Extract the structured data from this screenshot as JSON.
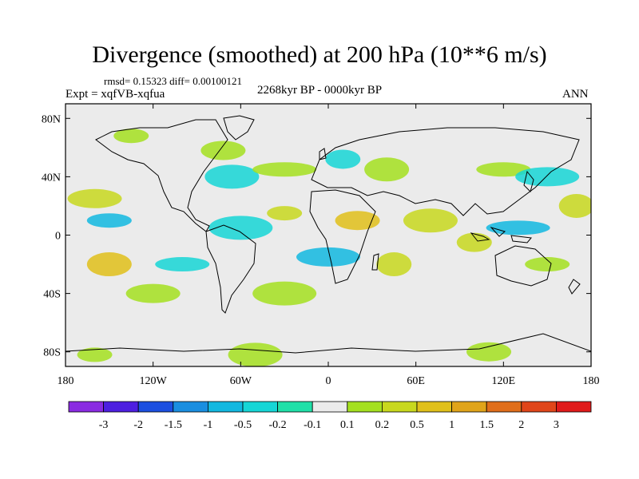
{
  "title": "Divergence (smoothed) at 200 hPa (10**6 m/s)",
  "stats": "rmsd= 0.15323 diff= 0.00100121",
  "experiment": "Expt = xqfVB-xqfua",
  "period": "2268kyr BP - 0000kyr BP",
  "season": "ANN",
  "axes": {
    "lat_ticks": [
      {
        "value": 80,
        "label": "80N"
      },
      {
        "value": 40,
        "label": "40N"
      },
      {
        "value": 0,
        "label": "0"
      },
      {
        "value": -40,
        "label": "40S"
      },
      {
        "value": -80,
        "label": "80S"
      }
    ],
    "lon_ticks": [
      {
        "value": -180,
        "label": "180"
      },
      {
        "value": -120,
        "label": "120W"
      },
      {
        "value": -60,
        "label": "60W"
      },
      {
        "value": 0,
        "label": "0"
      },
      {
        "value": 60,
        "label": "60E"
      },
      {
        "value": 120,
        "label": "120E"
      },
      {
        "value": 180,
        "label": "180"
      }
    ],
    "lat_range": [
      -90,
      90
    ],
    "lon_range": [
      -180,
      180
    ]
  },
  "colorbar": {
    "colors": [
      "#8a2be2",
      "#4d1fe0",
      "#1c4fe0",
      "#1a8ee0",
      "#12b8e0",
      "#16d6d6",
      "#20e0a8",
      "#ebebeb",
      "#a4e020",
      "#c8d81e",
      "#e0c01a",
      "#e0a41a",
      "#e06e1a",
      "#e0461a",
      "#e01a1a"
    ],
    "labels": [
      "-3",
      "-2",
      "-1.5",
      "-1",
      "-0.5",
      "-0.2",
      "-0.1",
      "0.1",
      "0.2",
      "0.5",
      "1",
      "1.5",
      "2",
      "3"
    ]
  },
  "anomalies": [
    {
      "lon": -135,
      "lat": 68,
      "level": "0.2",
      "color": "#a4e020"
    },
    {
      "lon": -72,
      "lat": 58,
      "level": "0.2",
      "color": "#a4e020"
    },
    {
      "lon": -66,
      "lat": 40,
      "level": "-0.2",
      "color": "#16d6d6"
    },
    {
      "lon": -30,
      "lat": 45,
      "level": "0.2",
      "color": "#a4e020"
    },
    {
      "lon": 10,
      "lat": 52,
      "level": "-0.2",
      "color": "#16d6d6"
    },
    {
      "lon": 40,
      "lat": 45,
      "level": "0.2",
      "color": "#a4e020"
    },
    {
      "lon": 120,
      "lat": 45,
      "level": "0.2",
      "color": "#a4e020"
    },
    {
      "lon": 150,
      "lat": 40,
      "level": "-0.2",
      "color": "#16d6d6"
    },
    {
      "lon": 170,
      "lat": 20,
      "level": "0.5",
      "color": "#c8d81e"
    },
    {
      "lon": -150,
      "lat": 10,
      "level": "-0.5",
      "color": "#12b8e0"
    },
    {
      "lon": -160,
      "lat": 25,
      "level": "0.5",
      "color": "#c8d81e"
    },
    {
      "lon": -60,
      "lat": 5,
      "level": "-0.2",
      "color": "#16d6d6"
    },
    {
      "lon": -30,
      "lat": 15,
      "level": "0.5",
      "color": "#c8d81e"
    },
    {
      "lon": 20,
      "lat": 10,
      "level": "1",
      "color": "#e0c01a"
    },
    {
      "lon": 70,
      "lat": 10,
      "level": "0.5",
      "color": "#c8d81e"
    },
    {
      "lon": 130,
      "lat": 5,
      "level": "-0.5",
      "color": "#12b8e0"
    },
    {
      "lon": 100,
      "lat": -5,
      "level": "0.5",
      "color": "#c8d81e"
    },
    {
      "lon": -150,
      "lat": -20,
      "level": "1",
      "color": "#e0c01a"
    },
    {
      "lon": -100,
      "lat": -20,
      "level": "-0.2",
      "color": "#16d6d6"
    },
    {
      "lon": 0,
      "lat": -15,
      "level": "-0.5",
      "color": "#12b8e0"
    },
    {
      "lon": 45,
      "lat": -20,
      "level": "0.5",
      "color": "#c8d81e"
    },
    {
      "lon": 150,
      "lat": -20,
      "level": "0.2",
      "color": "#a4e020"
    },
    {
      "lon": -120,
      "lat": -40,
      "level": "0.2",
      "color": "#a4e020"
    },
    {
      "lon": -30,
      "lat": -40,
      "level": "0.2",
      "color": "#a4e020"
    },
    {
      "lon": -160,
      "lat": -82,
      "level": "0.2",
      "color": "#a4e020"
    },
    {
      "lon": 110,
      "lat": -80,
      "level": "0.2",
      "color": "#a4e020"
    },
    {
      "lon": -50,
      "lat": -82,
      "level": "0.2",
      "color": "#a4e020"
    }
  ]
}
